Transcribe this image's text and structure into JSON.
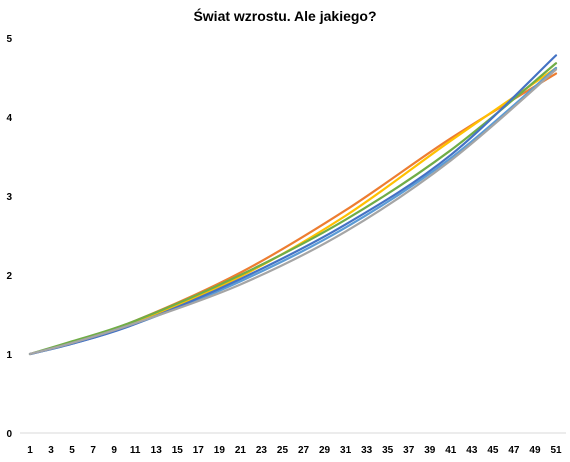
{
  "chart_data": {
    "type": "line",
    "title": "Świat wzrostu. Ale jakiego?",
    "xlabel": "",
    "ylabel": "",
    "x_range": [
      1,
      51
    ],
    "ylim": [
      0,
      5
    ],
    "x_ticks": [
      "1",
      "3",
      "5",
      "7",
      "9",
      "11",
      "13",
      "15",
      "17",
      "19",
      "21",
      "23",
      "25",
      "27",
      "29",
      "31",
      "33",
      "35",
      "37",
      "39",
      "41",
      "43",
      "45",
      "47",
      "49",
      "51"
    ],
    "y_ticks": [
      "0",
      "1",
      "2",
      "3",
      "4",
      "5"
    ],
    "grid": false,
    "legend": "none",
    "series": [
      {
        "color": "#ED7D31",
        "x": [
          1,
          5,
          11,
          21,
          31,
          41,
          51
        ],
        "y": [
          1.0,
          1.15,
          1.42,
          2.03,
          2.82,
          3.73,
          4.55
        ]
      },
      {
        "color": "#FFC000",
        "x": [
          1,
          5,
          11,
          21,
          31,
          41,
          51
        ],
        "y": [
          1.0,
          1.14,
          1.4,
          1.98,
          2.75,
          3.7,
          4.62
        ]
      },
      {
        "color": "#70AD47",
        "x": [
          1,
          5,
          11,
          21,
          31,
          41,
          51
        ],
        "y": [
          1.0,
          1.16,
          1.42,
          2.0,
          2.7,
          3.58,
          4.68
        ]
      },
      {
        "color": "#5B9BD5",
        "x": [
          1,
          5,
          11,
          21,
          31,
          41,
          51
        ],
        "y": [
          1.0,
          1.13,
          1.38,
          1.92,
          2.6,
          3.48,
          4.62
        ]
      },
      {
        "color": "#4472C4",
        "x": [
          1,
          5,
          11,
          21,
          31,
          41,
          51
        ],
        "y": [
          1.0,
          1.13,
          1.38,
          1.95,
          2.64,
          3.52,
          4.78
        ]
      },
      {
        "color": "#A5A5A5",
        "x": [
          1,
          5,
          11,
          21,
          31,
          41,
          51
        ],
        "y": [
          1.0,
          1.14,
          1.39,
          1.88,
          2.55,
          3.45,
          4.6
        ]
      }
    ]
  }
}
